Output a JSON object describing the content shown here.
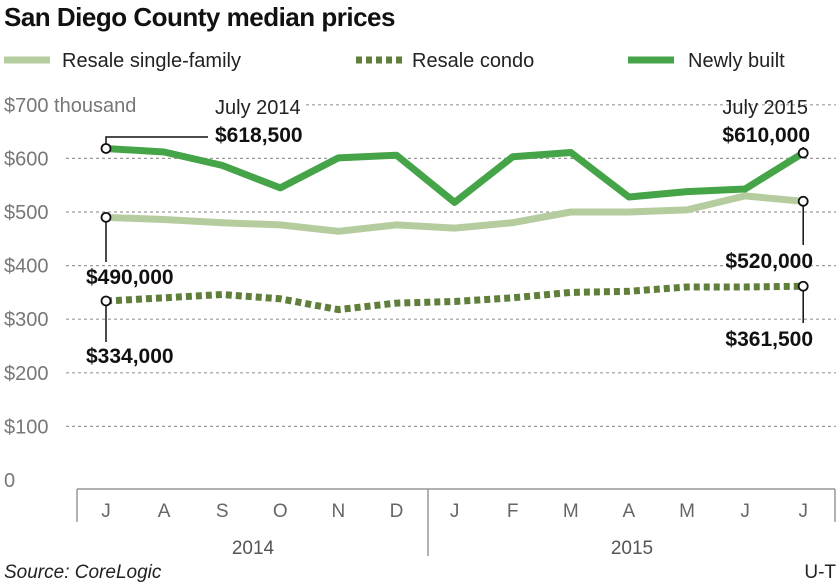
{
  "chart_data": {
    "type": "line",
    "title": "San Diego County median prices",
    "categories": [
      "J",
      "A",
      "S",
      "O",
      "N",
      "D",
      "J",
      "F",
      "M",
      "A",
      "M",
      "J",
      "J"
    ],
    "year_labels": [
      "2014",
      "2015"
    ],
    "y_tick_labels": [
      "$700 thousand",
      "$600",
      "$500",
      "$400",
      "$300",
      "$200",
      "$100",
      "0"
    ],
    "ylim": [
      0,
      700
    ],
    "grid": true,
    "legend_position": "top",
    "series": [
      {
        "name": "Resale single-family",
        "color": "#b5cc9e",
        "style": "solid",
        "values": [
          490,
          486,
          480,
          476,
          464,
          476,
          470,
          480,
          500,
          500,
          504,
          530,
          520
        ]
      },
      {
        "name": "Resale condo",
        "color": "#5f7f3b",
        "style": "dotted",
        "values": [
          334,
          340,
          346,
          338,
          318,
          330,
          333,
          340,
          350,
          352,
          360,
          360,
          361.5
        ]
      },
      {
        "name": "Newly built",
        "color": "#45a447",
        "style": "solid",
        "values": [
          618.5,
          612,
          587,
          545,
          601,
          606,
          518,
          603,
          611,
          528,
          538,
          543,
          610
        ]
      }
    ],
    "annotations": {
      "start_date": "July 2014",
      "end_date": "July 2015",
      "newly_start": "$618,500",
      "newly_end": "$610,000",
      "single_start": "$490,000",
      "single_end": "$520,000",
      "condo_start": "$334,000",
      "condo_end": "$361,500"
    },
    "source": "Source: CoreLogic",
    "credit": "U-T"
  }
}
